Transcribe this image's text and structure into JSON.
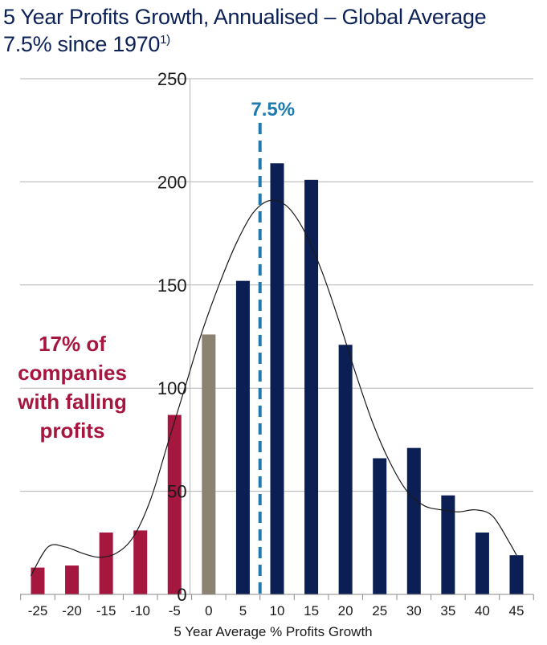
{
  "title": {
    "line1": "5 Year Profits Growth, Annualised – Global Average",
    "line2_text": "7.5% since 1970",
    "line2_sup": "1)"
  },
  "annotation": {
    "line1": "17% of",
    "line2": "companies",
    "line3": "with falling",
    "line4": "profits"
  },
  "chart_data": {
    "type": "bar",
    "title": "5 Year Profits Growth, Annualised – Global Average 7.5% since 1970",
    "xlabel": "5 Year Average % Profits Growth",
    "ylabel": "",
    "ylim": [
      0,
      250
    ],
    "yticks": [
      0,
      50,
      100,
      150,
      200,
      250
    ],
    "grid": true,
    "categories": [
      "-25",
      "-20",
      "-15",
      "-10",
      "-5",
      "0",
      "5",
      "10",
      "15",
      "20",
      "25",
      "30",
      "35",
      "40",
      "45"
    ],
    "values": [
      13,
      14,
      30,
      31,
      87,
      126,
      152,
      209,
      201,
      121,
      66,
      71,
      48,
      30,
      19
    ],
    "bar_colors": [
      "#a6173f",
      "#a6173f",
      "#a6173f",
      "#a6173f",
      "#a6173f",
      "#8c8272",
      "#0b1f55",
      "#0b1f55",
      "#0b1f55",
      "#0b1f55",
      "#0b1f55",
      "#0b1f55",
      "#0b1f55",
      "#0b1f55",
      "#0b1f55"
    ],
    "reference_line": {
      "x": 7.5,
      "label": "7.5%",
      "color": "#1f7ab0",
      "style": "dashed"
    },
    "smooth_curve": {
      "x": [
        -26,
        -23.5,
        -21,
        -18.5,
        -16,
        -13.5,
        -11,
        -8.5,
        -6,
        -3.5,
        -1,
        1.5,
        4,
        6.5,
        9,
        11.5,
        14,
        16.5,
        19,
        21.5,
        24,
        26.5,
        29,
        31.5,
        34,
        36.5,
        39,
        41.5,
        44,
        45
      ],
      "y": [
        9,
        23,
        23,
        20,
        18,
        20,
        28,
        46,
        73,
        100,
        127,
        150,
        170,
        185,
        191,
        188,
        176,
        157,
        133,
        107,
        83,
        64,
        50,
        43,
        41,
        40,
        41,
        38,
        25,
        19
      ],
      "color": "#1a1a1a"
    },
    "colors": {
      "falling": "#a6173f",
      "zero": "#8c8272",
      "rising": "#0b1f55",
      "grid": "#b3b3b3",
      "axis": "#8a8a8a"
    }
  }
}
